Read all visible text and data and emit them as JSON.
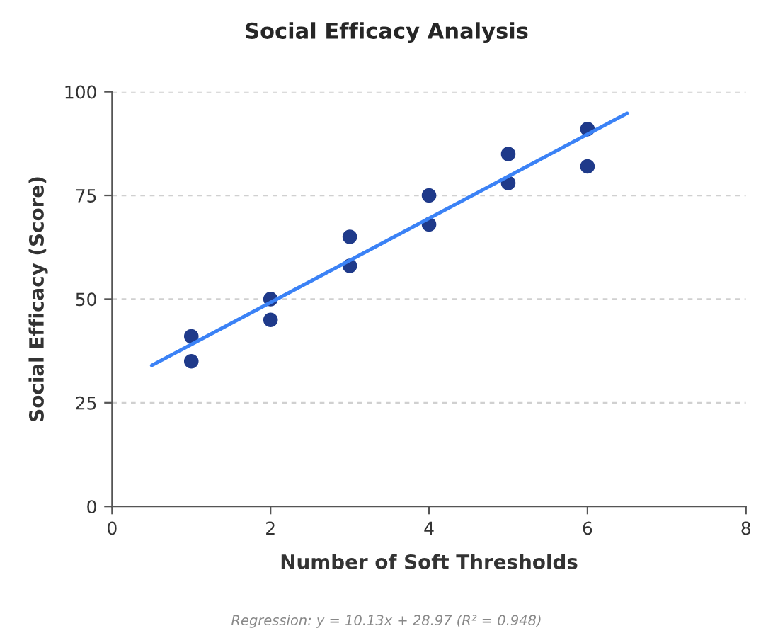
{
  "chart_data": {
    "type": "scatter",
    "title": "Social Efficacy Analysis",
    "xlabel": "Number of Soft Thresholds",
    "ylabel": "Social Efficacy (Score)",
    "series": [
      {
        "marker": "circle",
        "color": "#1f3a8a",
        "x": [
          1,
          1,
          2,
          2,
          3,
          3,
          4,
          4,
          5,
          5,
          6,
          6
        ],
        "values": [
          41,
          35,
          50,
          45,
          65,
          58,
          75,
          68,
          85,
          78,
          91,
          82
        ]
      },
      {
        "type": "line",
        "marker": "none",
        "color": "#3b82f6",
        "x": [
          0.5,
          6.5
        ],
        "values": [
          34.0,
          94.8
        ]
      }
    ],
    "xlim": [
      0,
      8
    ],
    "xticks": [
      0,
      2,
      4,
      6,
      8
    ],
    "ylim": [
      0,
      100
    ],
    "yticks": [
      0,
      25,
      50,
      75,
      100
    ],
    "grid": "y",
    "annotations": [
      "Regression: y = 10.13x + 28.97 (R² = 0.948)"
    ]
  }
}
